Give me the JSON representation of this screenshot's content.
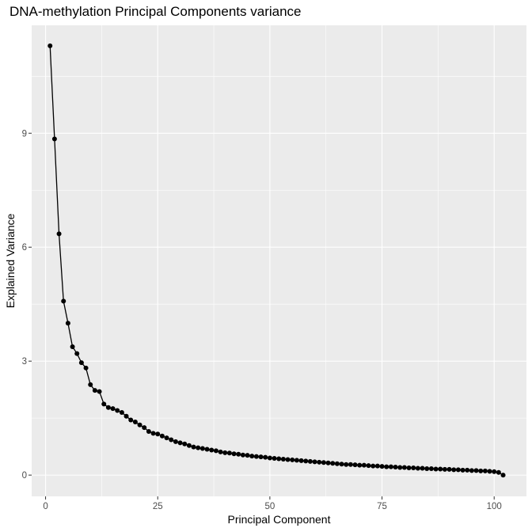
{
  "chart_data": {
    "type": "line",
    "title": "DNA-methylation Principal Components variance",
    "xlabel": "Principal Component",
    "ylabel": "Explained Variance",
    "xlim": [
      -3.1,
      107.2
    ],
    "ylim": [
      -0.56,
      11.84
    ],
    "xticks": [
      0,
      25,
      50,
      75,
      100
    ],
    "yticks": [
      0,
      3,
      6,
      9
    ],
    "x_minor": [
      12.5,
      37.5,
      62.5,
      87.5
    ],
    "y_minor": [
      1.5,
      4.5,
      7.5,
      10.5
    ],
    "grid": true,
    "legend": "none",
    "colors": {
      "panel": "#ebebeb",
      "grid": "#ffffff",
      "series": "#000000"
    },
    "series": [
      {
        "x": [
          1,
          2,
          3,
          4,
          5,
          6,
          7,
          8,
          9,
          10,
          11,
          12,
          13,
          14,
          15,
          16,
          17,
          18,
          19,
          20,
          21,
          22,
          23,
          24,
          25,
          26,
          27,
          28,
          29,
          30,
          31,
          32,
          33,
          34,
          35,
          36,
          37,
          38,
          39,
          40,
          41,
          42,
          43,
          44,
          45,
          46,
          47,
          48,
          49,
          50,
          51,
          52,
          53,
          54,
          55,
          56,
          57,
          58,
          59,
          60,
          61,
          62,
          63,
          64,
          65,
          66,
          67,
          68,
          69,
          70,
          71,
          72,
          73,
          74,
          75,
          76,
          77,
          78,
          79,
          80,
          81,
          82,
          83,
          84,
          85,
          86,
          87,
          88,
          89,
          90,
          91,
          92,
          93,
          94,
          95,
          96,
          97,
          98,
          99,
          100,
          101,
          102
        ],
        "values": [
          11.3,
          8.85,
          6.35,
          4.58,
          4.0,
          3.38,
          3.2,
          2.96,
          2.82,
          2.38,
          2.23,
          2.2,
          1.87,
          1.78,
          1.75,
          1.7,
          1.65,
          1.55,
          1.45,
          1.4,
          1.32,
          1.25,
          1.15,
          1.1,
          1.08,
          1.03,
          0.98,
          0.93,
          0.88,
          0.85,
          0.82,
          0.78,
          0.74,
          0.72,
          0.7,
          0.68,
          0.66,
          0.64,
          0.61,
          0.59,
          0.58,
          0.56,
          0.55,
          0.53,
          0.52,
          0.5,
          0.49,
          0.48,
          0.47,
          0.45,
          0.44,
          0.43,
          0.42,
          0.41,
          0.4,
          0.39,
          0.38,
          0.37,
          0.36,
          0.35,
          0.34,
          0.33,
          0.32,
          0.31,
          0.3,
          0.29,
          0.28,
          0.28,
          0.27,
          0.26,
          0.26,
          0.25,
          0.24,
          0.24,
          0.23,
          0.22,
          0.22,
          0.21,
          0.2,
          0.2,
          0.19,
          0.19,
          0.18,
          0.18,
          0.17,
          0.17,
          0.16,
          0.16,
          0.15,
          0.15,
          0.14,
          0.14,
          0.13,
          0.13,
          0.12,
          0.12,
          0.11,
          0.11,
          0.1,
          0.09,
          0.07,
          0.0
        ]
      }
    ]
  }
}
